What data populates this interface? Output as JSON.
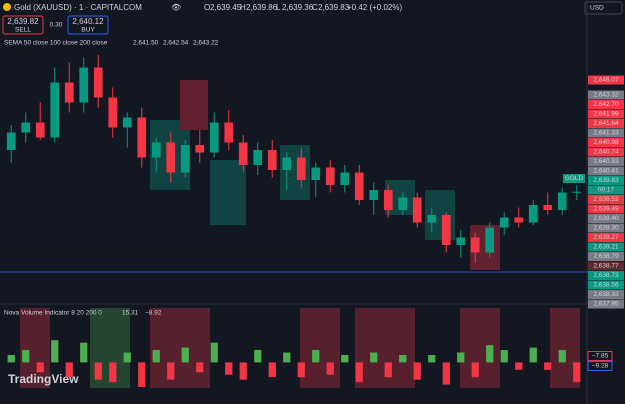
{
  "header": {
    "symbol": "Gold (XAUUSD) · 1 · CAPITALCOM",
    "ohlc": [
      {
        "key": "O",
        "value": "2,639.45"
      },
      {
        "key": "H",
        "value": "2,639.86"
      },
      {
        "key": "L",
        "value": "2,639.36"
      },
      {
        "key": "C",
        "value": "2,639.83"
      }
    ],
    "change": "+0.42 (+0.02%)",
    "currency": "USD"
  },
  "order_panel": {
    "sell_price": "2,639.82",
    "sell_label": "SELL",
    "spread": "0.30",
    "buy_price": "2,640.12",
    "buy_label": "BUY"
  },
  "indicator": {
    "name": "SEMA 50 close 100 close 200 close",
    "values": [
      "2,641.50",
      "2,642.54",
      "2,643.22"
    ]
  },
  "price_labels": [
    {
      "text": "2,646.07",
      "color": "#f23645"
    },
    {
      "text": "2,643.32",
      "color": "#787b86"
    },
    {
      "text": "2,642.70",
      "color": "#f23645"
    },
    {
      "text": "2,641.99",
      "color": "#f23645"
    },
    {
      "text": "2,641.64",
      "color": "#f23645"
    },
    {
      "text": "2,641.33",
      "color": "#787b86"
    },
    {
      "text": "2,640.98",
      "color": "#f23645"
    },
    {
      "text": "2,640.74",
      "color": "#f23645"
    },
    {
      "text": "2,640.53",
      "color": "#787b86"
    },
    {
      "text": "2,640.41",
      "color": "#787b86"
    },
    {
      "text": "2,639.83",
      "color": "#089981"
    },
    {
      "text": "00:17",
      "color": "#089981"
    },
    {
      "text": "2,639.52",
      "color": "#f23645"
    },
    {
      "text": "2,639.49",
      "color": "#f23645"
    },
    {
      "text": "2,639.40",
      "color": "#787b86"
    },
    {
      "text": "2,639.30",
      "color": "#787b86"
    },
    {
      "text": "2,639.27",
      "color": "#f23645"
    },
    {
      "text": "2,639.21",
      "color": "#089981"
    },
    {
      "text": "2,638.79",
      "color": "#787b86"
    },
    {
      "text": "2,638.77",
      "color": "#5d2a30"
    },
    {
      "text": "2,638.73",
      "color": "#089981"
    },
    {
      "text": "2,638.56",
      "color": "#089981"
    },
    {
      "text": "2,638.33",
      "color": "#787b86"
    },
    {
      "text": "2,637.95",
      "color": "#787b86"
    }
  ],
  "symbol_tag": "GOLD",
  "volume_pane": {
    "title": "Nova Volume Indicator 8 20 200 0",
    "values": [
      "15.31",
      "−8.92"
    ],
    "labels": [
      {
        "text": "−7.85",
        "color": "#f23645"
      },
      {
        "text": "−9.28",
        "color": "#2962ff"
      }
    ]
  },
  "brand": "TradingView",
  "chart_data": [
    {
      "type": "candlestick",
      "ylim": [
        2635.5,
        2645.5
      ],
      "up_color": "#089981",
      "down_color": "#f23645",
      "open": [
        2641.5,
        2642.2,
        2642.6,
        2642.0,
        2644.2,
        2643.4,
        2644.8,
        2643.6,
        2642.4,
        2642.8,
        2641.2,
        2641.8,
        2640.6,
        2641.7,
        2641.4,
        2642.6,
        2641.8,
        2640.9,
        2641.5,
        2640.7,
        2641.2,
        2640.3,
        2640.8,
        2640.1,
        2640.6,
        2639.5,
        2639.9,
        2639.1,
        2639.6,
        2638.6,
        2638.9,
        2637.7,
        2638.0,
        2637.4,
        2638.4,
        2638.8,
        2638.6,
        2639.3,
        2639.1,
        2639.8
      ],
      "high": [
        2642.5,
        2643.0,
        2643.4,
        2644.8,
        2645.0,
        2645.2,
        2645.3,
        2644.0,
        2643.0,
        2643.2,
        2642.0,
        2642.2,
        2641.9,
        2642.3,
        2643.0,
        2643.1,
        2642.1,
        2641.8,
        2641.9,
        2641.4,
        2641.6,
        2641.0,
        2641.1,
        2640.9,
        2640.9,
        2640.2,
        2640.1,
        2639.8,
        2639.8,
        2639.2,
        2639.0,
        2638.3,
        2638.2,
        2638.6,
        2639.0,
        2639.2,
        2639.5,
        2639.8,
        2640.0,
        2640.1
      ],
      "low": [
        2641.0,
        2641.8,
        2641.9,
        2641.8,
        2643.0,
        2643.0,
        2643.2,
        2642.0,
        2641.6,
        2640.8,
        2640.6,
        2640.2,
        2640.4,
        2641.0,
        2641.2,
        2641.5,
        2640.6,
        2640.5,
        2640.4,
        2639.9,
        2640.0,
        2639.6,
        2639.8,
        2639.8,
        2639.3,
        2638.9,
        2638.8,
        2638.9,
        2638.4,
        2638.2,
        2637.4,
        2637.2,
        2637.0,
        2637.2,
        2638.1,
        2638.4,
        2638.5,
        2638.9,
        2638.9,
        2639.5
      ],
      "close": [
        2642.2,
        2642.6,
        2642.0,
        2644.2,
        2643.4,
        2644.8,
        2643.6,
        2642.4,
        2642.8,
        2641.2,
        2641.8,
        2640.6,
        2641.7,
        2641.4,
        2642.6,
        2641.8,
        2640.9,
        2641.5,
        2640.7,
        2641.2,
        2640.3,
        2640.8,
        2640.1,
        2640.6,
        2639.5,
        2639.9,
        2639.1,
        2639.6,
        2638.6,
        2638.9,
        2637.7,
        2638.0,
        2637.4,
        2638.4,
        2638.8,
        2638.6,
        2639.3,
        2639.1,
        2639.8,
        2639.83
      ]
    },
    {
      "type": "bar",
      "ylim": [
        -12,
        18
      ],
      "up_color": "#4caf50",
      "down_color": "#f23645",
      "values": [
        3,
        5,
        -4,
        9,
        -6,
        8,
        -7,
        -8,
        4,
        -10,
        5,
        -7,
        6,
        -4,
        8,
        -5,
        -7,
        5,
        -6,
        4,
        -6,
        5,
        -5,
        3,
        -8,
        4,
        -6,
        3,
        -7,
        3,
        -9,
        4,
        -6,
        7,
        5,
        -3,
        6,
        -3,
        5,
        -8
      ]
    }
  ]
}
